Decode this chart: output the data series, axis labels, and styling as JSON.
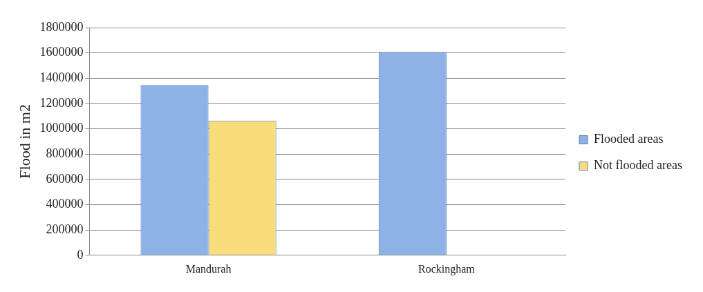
{
  "chart_data": {
    "type": "bar",
    "ylabel": "Flood in m2",
    "categories": [
      "Mandurah",
      "Rockingham"
    ],
    "series": [
      {
        "name": "Flooded areas",
        "color": "#8eb2e6",
        "values": [
          1345000,
          1608000
        ]
      },
      {
        "name": "Not flooded areas",
        "color": "#f9dc7c",
        "values": [
          1064000,
          null
        ]
      }
    ],
    "ylim": [
      0,
      1800000
    ],
    "yticks": [
      0,
      200000,
      400000,
      600000,
      800000,
      1000000,
      1200000,
      1400000,
      1600000,
      1800000
    ],
    "grid": "y",
    "legend": "right"
  }
}
